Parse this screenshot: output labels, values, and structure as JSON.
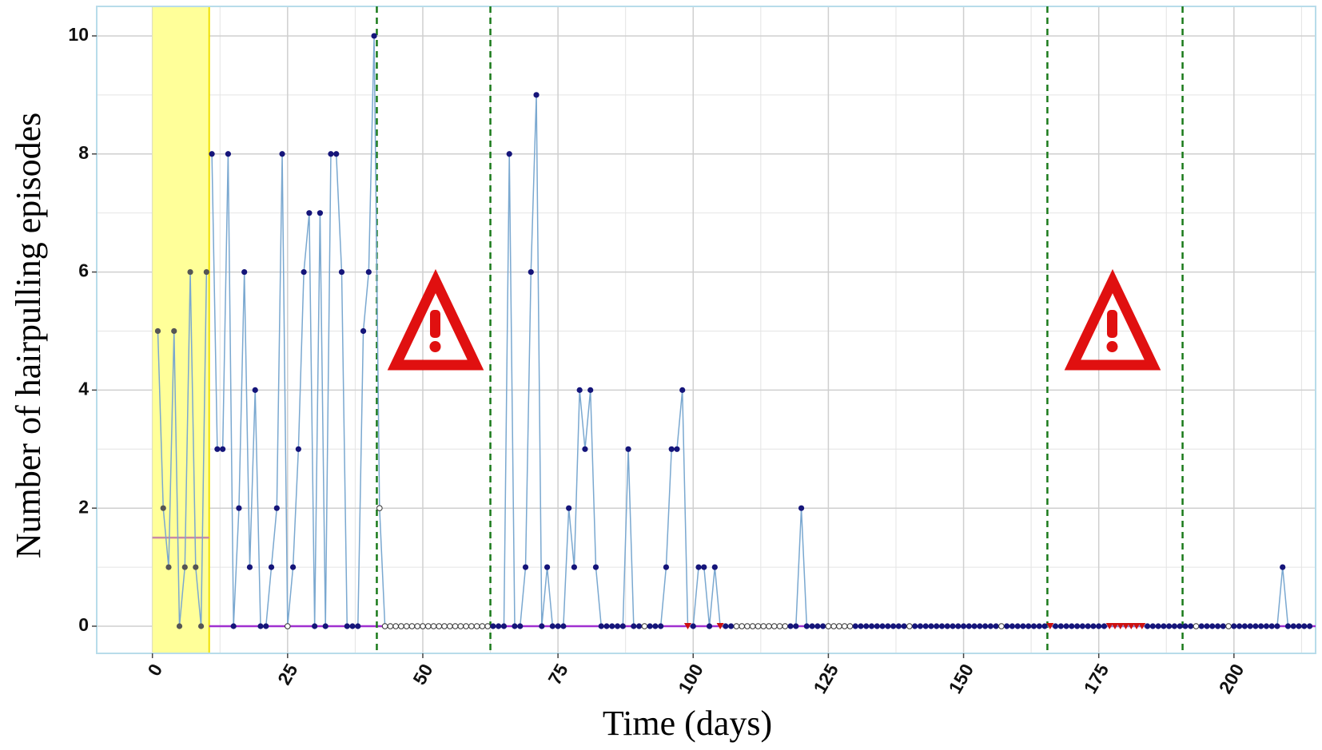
{
  "chart_data": {
    "type": "line",
    "x_label": "Time (days)",
    "y_label": "Number of hairpulling episodes",
    "xlim": [
      -10.3,
      215.1
    ],
    "ylim": [
      -0.46,
      10.5
    ],
    "xticks": [
      0,
      25,
      50,
      75,
      100,
      125,
      150,
      175,
      200
    ],
    "yticks": [
      0,
      2,
      4,
      6,
      8,
      10
    ],
    "grid": true,
    "baseline_shade": [
      0,
      10.5
    ],
    "shade_color": "#ffff99",
    "phase_lines": [
      41.5,
      62.5,
      165.5,
      190.5
    ],
    "phase_line_color": "#1a7a1a",
    "reference_lines": [
      {
        "value": 1.5,
        "x": [
          0,
          10.5
        ],
        "color": "#c98aa6"
      },
      {
        "value": 0,
        "x": [
          10.5,
          215.1
        ],
        "color": "#a030d0"
      }
    ],
    "line_color": "#7aa8d0",
    "series": [
      {
        "color": "#555555",
        "x": [
          1,
          2,
          3,
          4,
          5,
          6,
          7,
          8,
          9,
          10
        ],
        "values": [
          5,
          2,
          1,
          5,
          0,
          1,
          6,
          1,
          0,
          6
        ]
      },
      {
        "color": "#15157a",
        "x": [
          11,
          12,
          13,
          14,
          15,
          16,
          17,
          18,
          19,
          20,
          21,
          22,
          23,
          24,
          25,
          26,
          27,
          28,
          29,
          30,
          31,
          32,
          33,
          34,
          35,
          36,
          37,
          38,
          39,
          40,
          41,
          42,
          43,
          44,
          45,
          46,
          47,
          48,
          49,
          50,
          51,
          52,
          53,
          54,
          55,
          56,
          57,
          58,
          59,
          60,
          61,
          62,
          63,
          64,
          65,
          66,
          67,
          68,
          69,
          70,
          71,
          72,
          73,
          74,
          75,
          76,
          77,
          78,
          79,
          80,
          81,
          82,
          83,
          84,
          85,
          86,
          87,
          88,
          89,
          90,
          91,
          92,
          93,
          94,
          95,
          96,
          97,
          98,
          99,
          100,
          101,
          102,
          103,
          104,
          105,
          106,
          107,
          108,
          109,
          110,
          111,
          112,
          113,
          114,
          115,
          116,
          117,
          118,
          119,
          120,
          121,
          122,
          123,
          124,
          125,
          126,
          127,
          128,
          129,
          130,
          131,
          132,
          133,
          134,
          135,
          136,
          137,
          138,
          139,
          140,
          141,
          142,
          143,
          144,
          145,
          146,
          147,
          148,
          149,
          150,
          151,
          152,
          153,
          154,
          155,
          156,
          157,
          158,
          159,
          160,
          161,
          162,
          163,
          164,
          165,
          166,
          167,
          168,
          169,
          170,
          171,
          172,
          173,
          174,
          175,
          176,
          177,
          178,
          179,
          180,
          181,
          182,
          183,
          184,
          185,
          186,
          187,
          188,
          189,
          190,
          191,
          192,
          193,
          194,
          195,
          196,
          197,
          198,
          199,
          200,
          201,
          202,
          203,
          204,
          205,
          206,
          207,
          208,
          209,
          210,
          211,
          212,
          213,
          214
        ],
        "values": [
          8,
          3,
          3,
          8,
          0,
          2,
          6,
          1,
          4,
          0,
          0,
          1,
          2,
          8,
          0,
          1,
          3,
          6,
          7,
          0,
          7,
          0,
          8,
          8,
          6,
          0,
          0,
          0,
          5,
          6,
          10,
          2,
          0,
          0,
          0,
          0,
          0,
          0,
          0,
          0,
          0,
          0,
          0,
          0,
          0,
          0,
          0,
          0,
          0,
          0,
          0,
          0,
          0,
          0,
          0,
          8,
          0,
          0,
          1,
          6,
          9,
          0,
          1,
          0,
          0,
          0,
          2,
          1,
          4,
          3,
          4,
          1,
          0,
          0,
          0,
          0,
          0,
          3,
          0,
          0,
          0,
          0,
          0,
          0,
          1,
          3,
          3,
          4,
          0,
          0,
          1,
          1,
          0,
          1,
          0,
          0,
          0,
          0,
          0,
          0,
          0,
          0,
          0,
          0,
          0,
          0,
          0,
          0,
          0,
          2,
          0,
          0,
          0,
          0,
          0,
          0,
          0,
          0,
          0,
          0,
          0,
          0,
          0,
          0,
          0,
          0,
          0,
          0,
          0,
          0,
          0,
          0,
          0,
          0,
          0,
          0,
          0,
          0,
          0,
          0,
          0,
          0,
          0,
          0,
          0,
          0,
          0,
          0,
          0,
          0,
          0,
          0,
          0,
          0,
          0,
          0,
          0,
          0,
          0,
          0,
          0,
          0,
          0,
          0,
          0,
          0,
          0,
          0,
          0,
          0,
          0,
          0,
          0,
          0,
          0,
          0,
          0,
          0,
          0,
          0,
          0,
          0,
          0,
          0,
          0,
          0,
          0,
          0,
          0,
          0,
          0,
          0,
          0,
          0,
          0,
          0,
          0,
          0,
          1,
          0,
          0,
          0,
          0,
          0
        ]
      }
    ],
    "open_x": [
      25,
      42,
      43,
      44,
      45,
      46,
      47,
      48,
      49,
      50,
      51,
      52,
      53,
      54,
      55,
      56,
      57,
      58,
      59,
      60,
      61,
      62,
      91,
      108,
      109,
      110,
      111,
      112,
      113,
      114,
      115,
      116,
      117,
      125,
      126,
      127,
      128,
      129,
      140,
      157,
      193,
      199
    ],
    "triangle_x": [
      99,
      105,
      166,
      177,
      178,
      179,
      180,
      181,
      182,
      183
    ],
    "triangle_color": "#cc1111"
  }
}
